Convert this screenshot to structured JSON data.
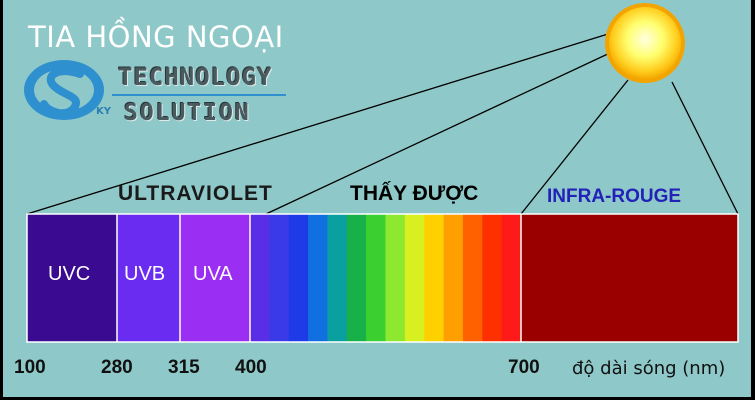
{
  "title": "TIA HỒNG NGOẠI",
  "logo": {
    "initial": "KY",
    "line1": "TECHNOLOGY",
    "line2": "SOLUTION"
  },
  "groups": {
    "ultraviolet": "ULTRAVIOLET",
    "visible": "THẤY ĐƯỢC",
    "infrared": "INFRA-ROUGE"
  },
  "segments": [
    {
      "label": "UVC",
      "color": "#3a0a90"
    },
    {
      "label": "UVB",
      "color": "#6b2cf2"
    },
    {
      "label": "UVA",
      "color": "#9a2ef2"
    }
  ],
  "visible_colors": [
    "#5a2ee6",
    "#3a3ae8",
    "#1f3be8",
    "#1070e0",
    "#0aa0a0",
    "#18b048",
    "#3bd030",
    "#8ee830",
    "#d8f020",
    "#ffd000",
    "#ffa000",
    "#ff6000",
    "#ff3000",
    "#ff1a1a"
  ],
  "infrared_color": "#9a0000",
  "ticks": [
    "100",
    "280",
    "315",
    "400",
    "700"
  ],
  "unit_label": "độ dài sóng  (nm)",
  "colors": {
    "background": "#8fc8c8",
    "sun_core": "#ffffa0",
    "sun_rim": "#f6a800"
  }
}
